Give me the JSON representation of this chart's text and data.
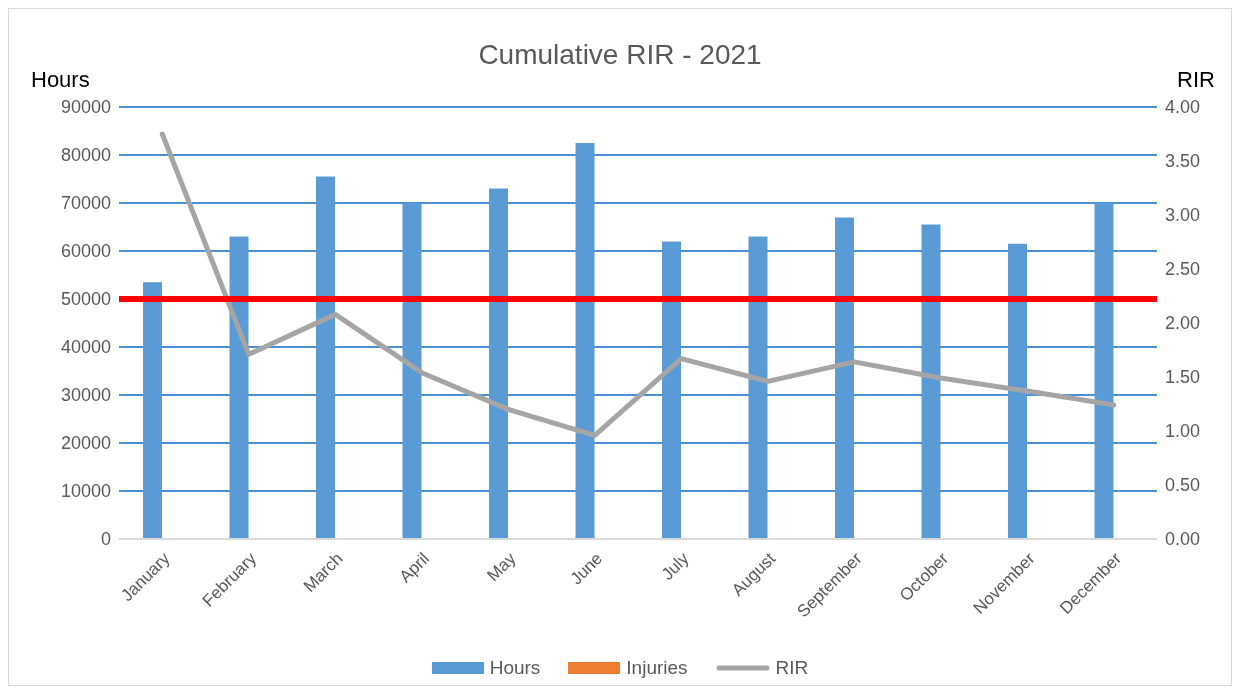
{
  "chart_data": {
    "type": "bar",
    "title": "Cumulative RIR - 2021",
    "ylabel": "Hours",
    "y2label": "RIR",
    "categories": [
      "January",
      "February",
      "March",
      "April",
      "May",
      "June",
      "July",
      "August",
      "September",
      "October",
      "November",
      "December"
    ],
    "series": [
      {
        "name": "Hours",
        "color": "#5b9bd5",
        "values": [
          53500,
          63000,
          75500,
          70000,
          73000,
          82500,
          62000,
          63000,
          67000,
          65500,
          61500,
          70000
        ]
      },
      {
        "name": "Injuries",
        "color": "#ed7d31",
        "values": [
          null,
          null,
          null,
          null,
          null,
          null,
          null,
          null,
          null,
          null,
          null,
          null
        ]
      },
      {
        "name": "RIR",
        "type": "line",
        "axis": "y2",
        "color": "#a5a5a5",
        "values": [
          3.75,
          1.71,
          2.08,
          1.54,
          1.2,
          0.96,
          1.67,
          1.46,
          1.64,
          1.49,
          1.37,
          1.24
        ]
      }
    ],
    "ylim": [
      0,
      90000
    ],
    "yticks": [
      0,
      10000,
      20000,
      30000,
      40000,
      50000,
      60000,
      70000,
      80000,
      90000
    ],
    "y2lim": [
      0,
      4
    ],
    "y2ticks": [
      {
        "value": 0,
        "label": "0.00"
      },
      {
        "value": 0.5,
        "label": "0.50"
      },
      {
        "value": 1,
        "label": "1.00"
      },
      {
        "value": 1.5,
        "label": "1.50"
      },
      {
        "value": 2,
        "label": "2.00"
      },
      {
        "value": 2.5,
        "label": "2.50"
      },
      {
        "value": 3,
        "label": "3.00"
      },
      {
        "value": 3.5,
        "label": "3.50"
      },
      {
        "value": 4,
        "label": "4.00"
      }
    ],
    "ref_lines": [
      {
        "axis": "y",
        "value": 50000,
        "color": "#ff0000"
      }
    ],
    "grid": "y",
    "legend": "bottom",
    "marker": "none",
    "line_style": "solid"
  }
}
